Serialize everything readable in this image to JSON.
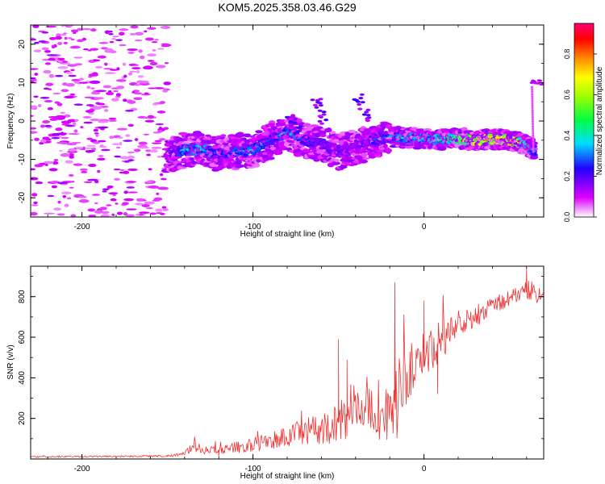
{
  "title": "KOM5.2025.358.03.46.G29",
  "colorbar": {
    "label": "Normalized spectral amplitude",
    "ticks": [
      "0.0",
      "0.2",
      "0.4",
      "0.6",
      "0.8"
    ],
    "tick_values": [
      0.0,
      0.2,
      0.4,
      0.6,
      0.8
    ],
    "range": [
      0,
      0.95
    ]
  },
  "chart_data": [
    {
      "type": "heatmap",
      "name": "spectrogram",
      "xlabel": "Height of straight line (km)",
      "ylabel": "Frequency (Hz)",
      "xlim": [
        -230,
        70
      ],
      "ylim": [
        -25,
        25
      ],
      "x_ticks": [
        "-200",
        "-100",
        "0"
      ],
      "x_tick_values": [
        -200,
        -100,
        0
      ],
      "y_ticks": [
        "20",
        "10",
        "0",
        "-10",
        "-20"
      ],
      "y_tick_values": [
        20,
        10,
        0,
        -10,
        -20
      ],
      "ridge": {
        "x": [
          -150,
          -140,
          -130,
          -120,
          -110,
          -100,
          -90,
          -80,
          -70,
          -60,
          -50,
          -40,
          -30,
          -20,
          -10,
          0,
          10,
          20,
          30,
          40,
          50,
          60,
          65
        ],
        "freq": [
          -8.5,
          -7.5,
          -7.5,
          -8.5,
          -8,
          -7.5,
          -5,
          -3,
          -5,
          -6,
          -8,
          -7,
          -5,
          -4,
          -4.5,
          -4.5,
          -5,
          -4.5,
          -5,
          -4.8,
          -5,
          -6,
          -8
        ],
        "amplitude": [
          0.15,
          0.4,
          0.45,
          0.3,
          0.35,
          0.4,
          0.3,
          0.45,
          0.3,
          0.25,
          0.25,
          0.2,
          0.3,
          0.35,
          0.4,
          0.45,
          0.5,
          0.6,
          0.8,
          0.85,
          0.9,
          0.55,
          0.3
        ]
      },
      "late_band": {
        "x": [
          63,
          70
        ],
        "freq": 10,
        "amplitude": 0.1
      }
    },
    {
      "type": "line",
      "name": "snr",
      "xlabel": "Height of straight line (km)",
      "ylabel": "SNR (v/v)",
      "xlim": [
        -230,
        70
      ],
      "ylim": [
        0,
        950
      ],
      "x_ticks": [
        "-200",
        "-100",
        "0"
      ],
      "x_tick_values": [
        -200,
        -100,
        0
      ],
      "y_ticks": [
        "200",
        "400",
        "600",
        "800"
      ],
      "y_tick_values": [
        200,
        400,
        600,
        800
      ],
      "color": "#ee3333",
      "trend": {
        "x": [
          -230,
          -150,
          -140,
          -135,
          -125,
          -115,
          -100,
          -90,
          -80,
          -70,
          -60,
          -50,
          -40,
          -30,
          -25,
          -20,
          -15,
          -10,
          -5,
          0,
          10,
          20,
          30,
          40,
          50,
          60,
          70
        ],
        "y": [
          10,
          15,
          25,
          60,
          40,
          50,
          70,
          90,
          110,
          130,
          150,
          180,
          250,
          230,
          200,
          250,
          300,
          400,
          480,
          520,
          580,
          660,
          700,
          760,
          790,
          840,
          800
        ],
        "spread": [
          3,
          5,
          10,
          25,
          20,
          25,
          35,
          45,
          55,
          70,
          80,
          100,
          130,
          120,
          110,
          160,
          200,
          150,
          120,
          110,
          100,
          80,
          60,
          50,
          40,
          60,
          40
        ]
      },
      "peaks": [
        {
          "x": -17,
          "y": 870
        },
        {
          "x": -50,
          "y": 590
        },
        {
          "x": -45,
          "y": 490
        },
        {
          "x": 60,
          "y": 940
        },
        {
          "x": 0,
          "y": 780
        },
        {
          "x": 8,
          "y": 320
        },
        {
          "x": -120,
          "y": 10
        }
      ]
    }
  ]
}
